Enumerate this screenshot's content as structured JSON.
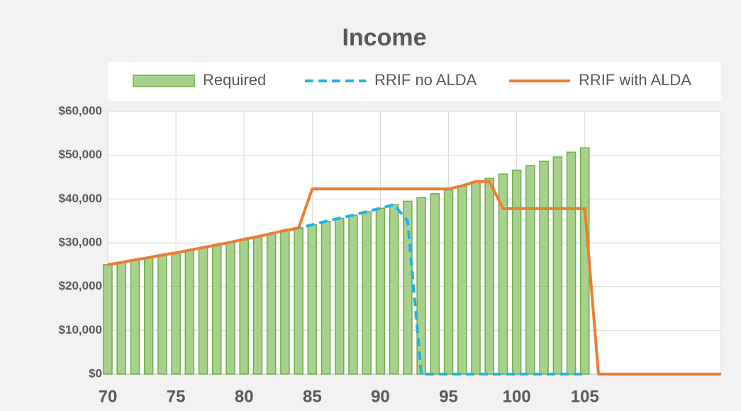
{
  "chart_data": {
    "type": "bar-line",
    "title": "Income",
    "x": [
      70,
      71,
      72,
      73,
      74,
      75,
      76,
      77,
      78,
      79,
      80,
      81,
      82,
      83,
      84,
      85,
      86,
      87,
      88,
      89,
      90,
      91,
      92,
      93,
      94,
      95,
      96,
      97,
      98,
      99,
      100,
      101,
      102,
      103,
      104,
      105,
      106,
      107,
      108,
      109,
      110,
      111,
      112,
      113,
      114,
      115
    ],
    "series": [
      {
        "name": "Required",
        "kind": "bar",
        "color": "#a9d18e",
        "edge": "#70ad47",
        "values": [
          25000,
          25500,
          26100,
          26600,
          27200,
          27700,
          28300,
          28900,
          29500,
          30100,
          30800,
          31400,
          32100,
          32800,
          33400,
          34100,
          34900,
          35600,
          36300,
          37100,
          37900,
          38700,
          39500,
          40300,
          41200,
          42000,
          42900,
          43800,
          44700,
          45700,
          46600,
          47600,
          48600,
          49600,
          50700,
          51700,
          null,
          null,
          null,
          null,
          null,
          null,
          null,
          null,
          null,
          null
        ]
      },
      {
        "name": "RRIF no ALDA",
        "kind": "line",
        "dash": true,
        "color": "#1fb3e6",
        "values": [
          25000,
          25500,
          26100,
          26600,
          27200,
          27700,
          28300,
          28900,
          29500,
          30100,
          30800,
          31400,
          32100,
          32800,
          33400,
          34100,
          34900,
          35600,
          36300,
          37100,
          37900,
          38700,
          35000,
          0,
          0,
          0,
          0,
          0,
          0,
          0,
          0,
          0,
          0,
          0,
          0,
          0,
          null,
          null,
          null,
          null,
          null,
          null,
          null,
          null,
          null,
          null
        ]
      },
      {
        "name": "RRIF with ALDA",
        "kind": "line",
        "dash": false,
        "color": "#ed7d31",
        "values": [
          25000,
          25500,
          26100,
          26600,
          27200,
          27700,
          28300,
          28900,
          29500,
          30100,
          30800,
          31400,
          32100,
          32800,
          33400,
          42300,
          42300,
          42300,
          42300,
          42300,
          42300,
          42300,
          42300,
          42300,
          42300,
          42300,
          43000,
          44000,
          44000,
          37800,
          37800,
          37800,
          37800,
          37800,
          37800,
          37800,
          0,
          0,
          0,
          0,
          0,
          0,
          0,
          0,
          0,
          0
        ]
      }
    ],
    "xlim": [
      70,
      115
    ],
    "xticks": [
      70,
      75,
      80,
      85,
      90,
      95,
      100,
      105
    ],
    "ylim": [
      0,
      60000
    ],
    "yticks": [
      {
        "value": 0,
        "label": "$0"
      },
      {
        "value": 10000,
        "label": "$10,000"
      },
      {
        "value": 20000,
        "label": "$20,000"
      },
      {
        "value": 30000,
        "label": "$30,000"
      },
      {
        "value": 40000,
        "label": "$40,000"
      },
      {
        "value": 50000,
        "label": "$50,000"
      },
      {
        "value": 60000,
        "label": "$60,000"
      }
    ],
    "grid": true,
    "legend": "top"
  }
}
